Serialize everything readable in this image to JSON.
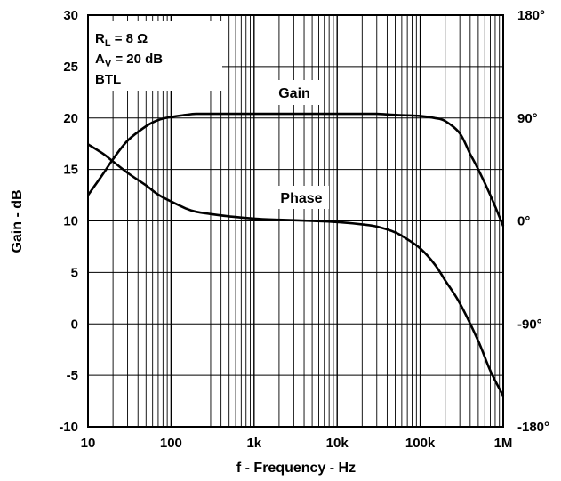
{
  "chart_data": {
    "type": "line",
    "x_scale": "log",
    "xlabel": "f - Frequency - Hz",
    "ylabel": "Gain - dB",
    "xlim": [
      10,
      1000000
    ],
    "ylim": [
      -10,
      30
    ],
    "y2lim": [
      -180,
      180
    ],
    "grid": true,
    "x_ticks": [
      {
        "value": 10,
        "label": "10"
      },
      {
        "value": 100,
        "label": "100"
      },
      {
        "value": 1000,
        "label": "1k"
      },
      {
        "value": 10000,
        "label": "10k"
      },
      {
        "value": 100000,
        "label": "100k"
      },
      {
        "value": 1000000,
        "label": "1M"
      }
    ],
    "y_ticks": [
      {
        "value": 30,
        "label": "30"
      },
      {
        "value": 25,
        "label": "25"
      },
      {
        "value": 20,
        "label": "20"
      },
      {
        "value": 15,
        "label": "15"
      },
      {
        "value": 10,
        "label": "10"
      },
      {
        "value": 5,
        "label": "5"
      },
      {
        "value": 0,
        "label": "0"
      },
      {
        "value": -5,
        "label": "-5"
      },
      {
        "value": -10,
        "label": "-10"
      }
    ],
    "y2_ticks": [
      {
        "value": 180,
        "label": "180°"
      },
      {
        "value": 90,
        "label": "90°"
      },
      {
        "value": 0,
        "label": "0°"
      },
      {
        "value": -90,
        "label": "-90°"
      },
      {
        "value": -180,
        "label": "-180°"
      }
    ],
    "conditions": [
      "R_L = 8 Ω",
      "A_V = 20 dB",
      "BTL"
    ],
    "series": [
      {
        "name": "Gain",
        "axis": "left",
        "unit": "dB",
        "x": [
          10,
          15,
          20,
          30,
          50,
          70,
          100,
          150,
          200,
          300,
          500,
          1000,
          2000,
          5000,
          10000,
          20000,
          30000,
          50000,
          100000,
          150000,
          200000,
          300000,
          400000,
          500000,
          700000,
          1000000
        ],
        "values": [
          12.5,
          14.5,
          16.0,
          17.8,
          19.2,
          19.8,
          20.1,
          20.3,
          20.4,
          20.4,
          20.4,
          20.4,
          20.4,
          20.4,
          20.4,
          20.4,
          20.4,
          20.3,
          20.2,
          20.0,
          19.7,
          18.5,
          16.5,
          15.0,
          12.5,
          9.5
        ]
      },
      {
        "name": "Phase",
        "axis": "right",
        "unit": "°",
        "x": [
          10,
          15,
          20,
          30,
          50,
          70,
          100,
          150,
          200,
          300,
          500,
          1000,
          2000,
          5000,
          10000,
          20000,
          30000,
          50000,
          70000,
          100000,
          150000,
          200000,
          300000,
          500000,
          700000,
          1000000
        ],
        "values": [
          67,
          59,
          52,
          42,
          31,
          23,
          17,
          11,
          8,
          6,
          4,
          2,
          1,
          0,
          -1,
          -3,
          -5,
          -10,
          -16,
          -24,
          -38,
          -52,
          -72,
          -105,
          -131,
          -153
        ]
      }
    ]
  }
}
